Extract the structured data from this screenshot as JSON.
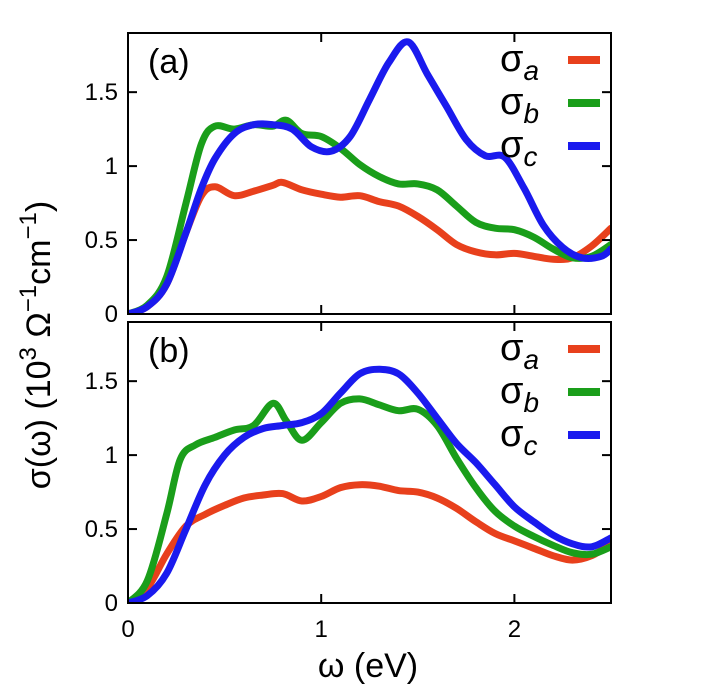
{
  "colors": {
    "a": "#e8401c",
    "b": "#1a9e1a",
    "c": "#1a1aee",
    "axis": "#000000"
  },
  "chart_data": [
    {
      "type": "line",
      "panel_label": "(a)",
      "xlim": [
        0,
        2.5
      ],
      "ylim": [
        0,
        1.9
      ],
      "xticks": [
        "0",
        "1",
        "2"
      ],
      "yticks": [
        "0",
        "0.5",
        "1",
        "1.5"
      ],
      "legend_position": "top-right",
      "series": [
        {
          "name": "a",
          "color": "#e8401c",
          "x": [
            0,
            0.1,
            0.2,
            0.3,
            0.38,
            0.45,
            0.55,
            0.65,
            0.75,
            0.8,
            0.9,
            1.0,
            1.1,
            1.2,
            1.3,
            1.4,
            1.5,
            1.6,
            1.7,
            1.8,
            1.9,
            2.0,
            2.1,
            2.2,
            2.3,
            2.4,
            2.5
          ],
          "y": [
            0,
            0.05,
            0.2,
            0.55,
            0.8,
            0.86,
            0.8,
            0.83,
            0.87,
            0.89,
            0.84,
            0.81,
            0.79,
            0.8,
            0.76,
            0.73,
            0.66,
            0.57,
            0.47,
            0.42,
            0.4,
            0.41,
            0.39,
            0.37,
            0.38,
            0.46,
            0.58
          ]
        },
        {
          "name": "b",
          "color": "#1a9e1a",
          "x": [
            0,
            0.1,
            0.2,
            0.3,
            0.38,
            0.45,
            0.55,
            0.65,
            0.75,
            0.82,
            0.9,
            1.0,
            1.1,
            1.2,
            1.3,
            1.4,
            1.5,
            1.6,
            1.7,
            1.8,
            1.9,
            2.0,
            2.1,
            2.2,
            2.3,
            2.4,
            2.5
          ],
          "y": [
            0,
            0.06,
            0.25,
            0.75,
            1.15,
            1.27,
            1.25,
            1.28,
            1.27,
            1.31,
            1.22,
            1.2,
            1.12,
            1.01,
            0.93,
            0.88,
            0.88,
            0.84,
            0.73,
            0.62,
            0.58,
            0.57,
            0.52,
            0.44,
            0.38,
            0.39,
            0.47
          ]
        },
        {
          "name": "c",
          "color": "#1a1aee",
          "x": [
            0,
            0.1,
            0.2,
            0.3,
            0.38,
            0.45,
            0.55,
            0.65,
            0.75,
            0.85,
            0.95,
            1.05,
            1.15,
            1.25,
            1.35,
            1.45,
            1.55,
            1.65,
            1.75,
            1.85,
            1.95,
            2.05,
            2.15,
            2.25,
            2.35,
            2.45,
            2.5
          ],
          "y": [
            0,
            0.05,
            0.2,
            0.55,
            0.85,
            1.05,
            1.22,
            1.28,
            1.28,
            1.25,
            1.13,
            1.1,
            1.2,
            1.45,
            1.7,
            1.84,
            1.62,
            1.4,
            1.18,
            1.07,
            1.06,
            0.85,
            0.6,
            0.45,
            0.38,
            0.39,
            0.44
          ]
        }
      ]
    },
    {
      "type": "line",
      "panel_label": "(b)",
      "xlim": [
        0,
        2.5
      ],
      "ylim": [
        0,
        1.9
      ],
      "xticks": [
        "0",
        "1",
        "2"
      ],
      "yticks": [
        "0",
        "0.5",
        "1",
        "1.5"
      ],
      "legend_position": "top-right",
      "series": [
        {
          "name": "a",
          "color": "#e8401c",
          "x": [
            0,
            0.1,
            0.2,
            0.3,
            0.4,
            0.5,
            0.6,
            0.7,
            0.8,
            0.9,
            1.0,
            1.1,
            1.2,
            1.3,
            1.4,
            1.5,
            1.6,
            1.7,
            1.8,
            1.9,
            2.0,
            2.1,
            2.2,
            2.3,
            2.4,
            2.5
          ],
          "y": [
            0,
            0.1,
            0.33,
            0.52,
            0.6,
            0.66,
            0.71,
            0.73,
            0.74,
            0.69,
            0.72,
            0.78,
            0.8,
            0.79,
            0.76,
            0.75,
            0.71,
            0.64,
            0.55,
            0.47,
            0.42,
            0.37,
            0.32,
            0.29,
            0.32,
            0.4
          ]
        },
        {
          "name": "b",
          "color": "#1a9e1a",
          "x": [
            0,
            0.1,
            0.2,
            0.27,
            0.35,
            0.45,
            0.55,
            0.65,
            0.75,
            0.82,
            0.9,
            1.0,
            1.1,
            1.2,
            1.3,
            1.4,
            1.5,
            1.6,
            1.7,
            1.8,
            1.9,
            2.0,
            2.1,
            2.2,
            2.3,
            2.4,
            2.5
          ],
          "y": [
            0,
            0.15,
            0.6,
            0.97,
            1.07,
            1.12,
            1.17,
            1.2,
            1.35,
            1.23,
            1.1,
            1.22,
            1.35,
            1.38,
            1.34,
            1.3,
            1.31,
            1.2,
            0.98,
            0.78,
            0.62,
            0.52,
            0.45,
            0.39,
            0.34,
            0.33,
            0.38
          ]
        },
        {
          "name": "c",
          "color": "#1a1aee",
          "x": [
            0,
            0.1,
            0.2,
            0.3,
            0.4,
            0.5,
            0.6,
            0.7,
            0.8,
            0.9,
            1.0,
            1.1,
            1.2,
            1.3,
            1.4,
            1.5,
            1.6,
            1.7,
            1.8,
            1.9,
            2.0,
            2.1,
            2.2,
            2.3,
            2.4,
            2.5
          ],
          "y": [
            0,
            0.05,
            0.2,
            0.5,
            0.8,
            1.0,
            1.12,
            1.18,
            1.2,
            1.22,
            1.28,
            1.42,
            1.55,
            1.58,
            1.55,
            1.42,
            1.25,
            1.08,
            0.95,
            0.8,
            0.65,
            0.55,
            0.46,
            0.4,
            0.38,
            0.44
          ]
        }
      ]
    }
  ],
  "xlabel": "ω (eV)",
  "ylabel": {
    "prefix": "σ(ω) (10",
    "exp1": "3",
    "ohm": " Ω",
    "exp2": "−1",
    "cm": "cm",
    "exp3": "−1",
    "suffix": ")"
  },
  "legend_symbol": "σ"
}
